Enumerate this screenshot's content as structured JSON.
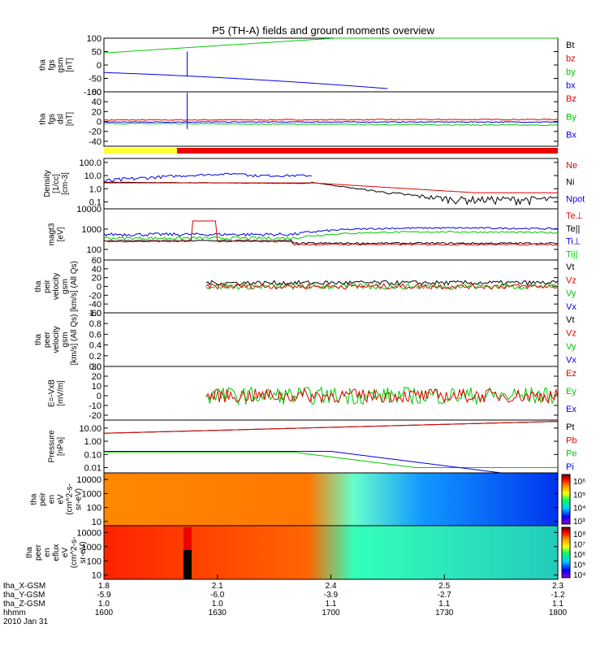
{
  "title": "P5 (TH-A) fields and ground moments overview",
  "colors": {
    "black": "#000000",
    "red": "#e00000",
    "green": "#00c800",
    "blue": "#0000e6",
    "yellow": "#ffff33",
    "bar_red": "#ee0000"
  },
  "panels": [
    {
      "key": "fgs_gsm",
      "ylabel": [
        "tha",
        "fgs",
        "gsm",
        "[nT]"
      ],
      "ticks": [
        "100",
        "50",
        "0",
        "-50",
        "-100"
      ],
      "ylim": [
        -100,
        100
      ],
      "legend": [
        {
          "text": "Bt",
          "color": "#000000"
        },
        {
          "text": "bz",
          "color": "#e00000"
        },
        {
          "text": "by",
          "color": "#00c800"
        },
        {
          "text": "bx",
          "color": "#0000e6"
        }
      ]
    },
    {
      "key": "fgs_dsl",
      "ylabel": [
        "tha",
        "fgs",
        "dsl",
        "[nT]"
      ],
      "ticks": [
        "60",
        "40",
        "20",
        "0",
        "-20",
        "-40"
      ],
      "ylim": [
        -50,
        60
      ],
      "legend": [
        {
          "text": "Bz",
          "color": "#e00000"
        },
        {
          "text": "By",
          "color": "#00c800"
        },
        {
          "text": "Bx",
          "color": "#0000e6"
        }
      ]
    },
    {
      "key": "density",
      "ylabel": [
        "Density",
        "[1/cc]",
        "[cm-3]"
      ],
      "log": true,
      "ticks": [
        "100.0",
        "10.0",
        "1.0",
        "0.1"
      ],
      "ylim": [
        0.03,
        200
      ],
      "legend": [
        {
          "text": "Ne",
          "color": "#e00000"
        },
        {
          "text": "Ni",
          "color": "#000000"
        },
        {
          "text": "Npot",
          "color": "#0000e6"
        }
      ]
    },
    {
      "key": "temperature",
      "ylabel": [
        "magt3",
        "[eV]"
      ],
      "log": true,
      "ticks": [
        "10000",
        "1000",
        "100"
      ],
      "ylim": [
        30,
        10000
      ],
      "legend": [
        {
          "text": "Te⊥",
          "color": "#e00000"
        },
        {
          "text": "Te||",
          "color": "#000000"
        },
        {
          "text": "Ti⊥",
          "color": "#0000e6"
        },
        {
          "text": "Ti||",
          "color": "#00c800"
        }
      ]
    },
    {
      "key": "peir_velocity",
      "ylabel": [
        "tha",
        "peir",
        "velocity",
        "gsm",
        "[km/s] (All Qs)"
      ],
      "ticks": [
        "60",
        "40",
        "20",
        "0",
        "-20",
        "-40",
        "-60"
      ],
      "ylim": [
        -60,
        60
      ],
      "legend": [
        {
          "text": "Vt",
          "color": "#000000"
        },
        {
          "text": "Vz",
          "color": "#e00000"
        },
        {
          "text": "Vy",
          "color": "#00c800"
        },
        {
          "text": "Vx",
          "color": "#0000e6"
        }
      ]
    },
    {
      "key": "peer_velocity",
      "ylabel": [
        "tha",
        "peer",
        "velocity",
        "gsm",
        "[km/s] (All Qs)"
      ],
      "ticks": [
        "1.0",
        "0.8",
        "0.6",
        "0.4",
        "0.2",
        "0.0"
      ],
      "ylim": [
        0,
        1
      ],
      "legend": [
        {
          "text": "Vt",
          "color": "#000000"
        },
        {
          "text": "Vz",
          "color": "#e00000"
        },
        {
          "text": "Vy",
          "color": "#00c800"
        },
        {
          "text": "Vx",
          "color": "#0000e6"
        }
      ]
    },
    {
      "key": "efield",
      "ylabel": [
        "E=-VxB",
        "[mV/m]"
      ],
      "ticks": [
        "30",
        "20",
        "10",
        "0",
        "-10",
        "-20"
      ],
      "ylim": [
        -25,
        30
      ],
      "legend": [
        {
          "text": "Ez",
          "color": "#e00000"
        },
        {
          "text": "Ey",
          "color": "#00c800"
        },
        {
          "text": "Ex",
          "color": "#0000e6"
        }
      ]
    },
    {
      "key": "pressure",
      "ylabel": [
        "Pressure",
        "[nPa]"
      ],
      "log": true,
      "ticks": [
        "10.00",
        "1.00",
        "0.10",
        "0.01"
      ],
      "ylim": [
        0.004,
        40
      ],
      "legend": [
        {
          "text": "Pt",
          "color": "#000000"
        },
        {
          "text": "Pb",
          "color": "#e00000"
        },
        {
          "text": "Pe",
          "color": "#00c800"
        },
        {
          "text": "Pi",
          "color": "#0000e6"
        }
      ]
    },
    {
      "key": "peir_eflux",
      "ylabel": [
        "tha",
        "peir",
        "en",
        "eV",
        "(cm^2-s-",
        "sr-eV)"
      ],
      "ticks": [
        "10000",
        "1000",
        "100",
        "10"
      ],
      "log": true,
      "ylim": [
        5,
        30000
      ],
      "colorbar_ticks": [
        "10⁶",
        "10⁵",
        "10⁴",
        "10³"
      ]
    },
    {
      "key": "peer_eflux",
      "ylabel": [
        "tha",
        "peer",
        "en",
        "eflux",
        "eV",
        "(cm^2-s-",
        "sr-eV)"
      ],
      "ticks": [
        "10000",
        "1000",
        "100",
        "10"
      ],
      "log": true,
      "ylim": [
        5,
        30000
      ],
      "colorbar_ticks": [
        "10⁸",
        "10⁷",
        "10⁶",
        "10⁵",
        "10⁴"
      ]
    }
  ],
  "xaxis": {
    "row_labels": [
      "tha_X-GSM",
      "tha_Y-GSM",
      "tha_Z-GSM",
      "hhmm",
      "2010 Jan 31"
    ],
    "columns": [
      {
        "time": "1600",
        "x": "1.8",
        "y": "-5.9",
        "z": "1.0"
      },
      {
        "time": "1630",
        "x": "2.1",
        "y": "-6.0",
        "z": "1.0"
      },
      {
        "time": "1700",
        "x": "2.4",
        "y": "-3.9",
        "z": "1.1"
      },
      {
        "time": "1730",
        "x": "2.5",
        "y": "-2.7",
        "z": "1.1"
      },
      {
        "time": "1800",
        "x": "2.3",
        "y": "-1.2",
        "z": "1.1"
      }
    ]
  },
  "chart_data": {
    "type": "line",
    "x_range_minutes": [
      0,
      120
    ],
    "title": "P5 (TH-A) fields and ground moments overview",
    "series_hint": "time series per panel, minutes after 1600 UT"
  }
}
